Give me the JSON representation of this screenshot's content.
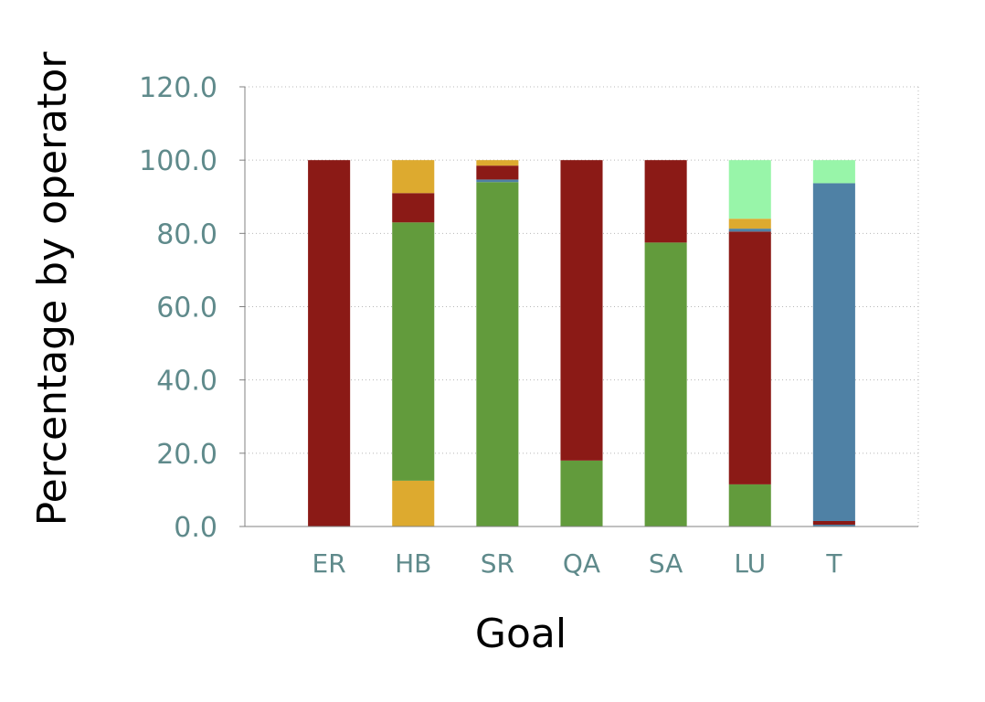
{
  "chart_data": {
    "type": "bar",
    "stacked": true,
    "xlabel": "Goal",
    "ylabel": "Percentage by operator",
    "ylim": [
      0,
      120
    ],
    "yticks": [
      "0.0",
      "20.0",
      "40.0",
      "60.0",
      "80.0",
      "100.0",
      "120.0"
    ],
    "grid": true,
    "categories": [
      "ER",
      "HB",
      "SR",
      "QA",
      "SA",
      "LU",
      "T"
    ],
    "series": [
      {
        "color": "#4f81a5",
        "values": [
          0,
          0,
          0,
          0,
          0,
          0,
          0.5
        ]
      },
      {
        "color": "#ddaa2f",
        "values": [
          0,
          12.5,
          0,
          0,
          0,
          0,
          0
        ]
      },
      {
        "color": "#629b3c",
        "values": [
          0,
          70.5,
          94,
          18,
          77.5,
          11.5,
          0
        ]
      },
      {
        "color": "#4f81a5",
        "values": [
          0,
          0,
          0.7,
          0,
          0,
          0,
          0
        ]
      },
      {
        "color": "#8b1a16",
        "values": [
          100,
          8,
          3.8,
          82,
          22.5,
          69,
          1
        ]
      },
      {
        "color": "#4f81a5",
        "values": [
          0,
          0,
          0,
          0,
          0,
          0.8,
          92.2
        ]
      },
      {
        "color": "#ddaa2f",
        "values": [
          0,
          9,
          1.5,
          0,
          0,
          2.7,
          0
        ]
      },
      {
        "color": "#98f5a9",
        "values": [
          0,
          0,
          0,
          0,
          0,
          16,
          6.3
        ]
      }
    ]
  }
}
